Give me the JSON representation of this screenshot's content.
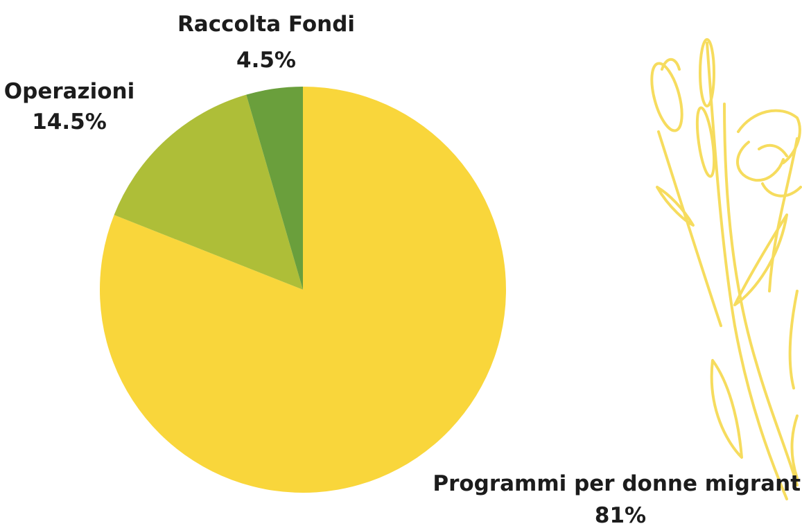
{
  "chart_data": {
    "type": "pie",
    "title": "",
    "start_angle": "top",
    "direction": "clockwise",
    "slices": [
      {
        "label": "Programmi per donne migranti",
        "value": 81,
        "value_text": "81%",
        "color": "#f9d63b"
      },
      {
        "label": "Operazioni",
        "value": 14.5,
        "value_text": "14.5%",
        "color": "#aebe38"
      },
      {
        "label": "Raccolta Fondi",
        "value": 4.5,
        "value_text": "4.5%",
        "color": "#6a9f3c"
      }
    ]
  },
  "decoration": {
    "icon": "flower-illustration-icon",
    "color": "#f6dc5e"
  }
}
